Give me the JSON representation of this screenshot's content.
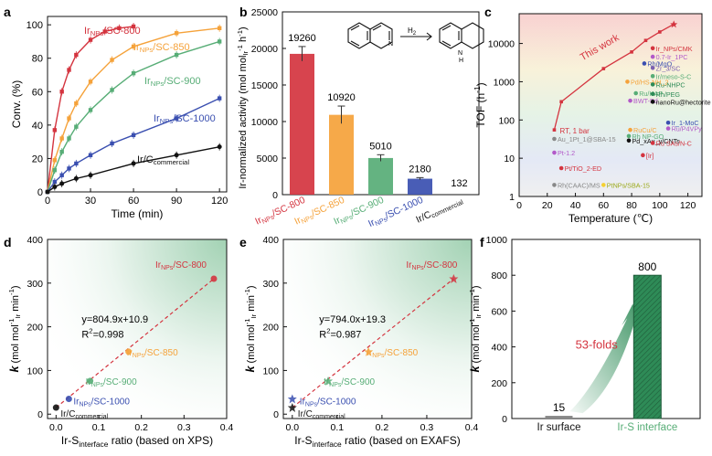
{
  "colors": {
    "red": "#d4343f",
    "orange": "#f5a23a",
    "green": "#57ad76",
    "blue": "#3a4fb0",
    "black": "#111111",
    "green_fill": "#2e8b57"
  },
  "chart_data": [
    {
      "panel": "a",
      "type": "line",
      "xlabel": "Time (min)",
      "ylabel": "Conv. (%)",
      "xlim": [
        0,
        125
      ],
      "ylim": [
        0,
        105
      ],
      "xticks": [
        "0",
        "30",
        "60",
        "90",
        "120"
      ],
      "yticks": [
        "0",
        "20",
        "40",
        "60",
        "80",
        "100"
      ],
      "series": [
        {
          "name": "Ir_NPs/SC-800",
          "label_main": "Ir",
          "label_sub": "NPs",
          "label_rest": "/SC-800",
          "color": "#d4343f",
          "marker": "square",
          "x": [
            0,
            5,
            10,
            15,
            20,
            30,
            40,
            50,
            60
          ],
          "y": [
            0,
            37,
            60,
            73,
            82,
            91,
            96,
            98,
            99
          ]
        },
        {
          "name": "Ir_NPs/SC-850",
          "label_main": "Ir",
          "label_sub": "NPs",
          "label_rest": "/SC-850",
          "color": "#f5a23a",
          "marker": "square",
          "x": [
            0,
            5,
            10,
            15,
            20,
            30,
            45,
            60,
            90,
            120
          ],
          "y": [
            0,
            19,
            32,
            44,
            53,
            66,
            79,
            87,
            95,
            98
          ]
        },
        {
          "name": "Ir_NPs/SC-900",
          "label_main": "Ir",
          "label_sub": "NPs",
          "label_rest": "/SC-900",
          "color": "#57ad76",
          "marker": "square",
          "x": [
            0,
            5,
            10,
            15,
            20,
            30,
            45,
            60,
            90,
            120
          ],
          "y": [
            0,
            13,
            24,
            32,
            39,
            49,
            61,
            71,
            82,
            90
          ]
        },
        {
          "name": "Ir_NPs/SC-1000",
          "label_main": "Ir",
          "label_sub": "NPs",
          "label_rest": "/SC-1000",
          "color": "#3a4fb0",
          "marker": "square",
          "x": [
            0,
            5,
            10,
            15,
            20,
            30,
            45,
            60,
            90,
            120
          ],
          "y": [
            0,
            6,
            10,
            14,
            17,
            22,
            29,
            34,
            44,
            56
          ]
        },
        {
          "name": "Ir/C_commercial",
          "label_main": "Ir/C",
          "label_sub": "commercial",
          "label_rest": "",
          "color": "#111111",
          "marker": "circle",
          "x": [
            0,
            5,
            10,
            20,
            30,
            60,
            90,
            120
          ],
          "y": [
            0,
            3,
            5,
            8,
            10,
            17,
            22,
            27
          ]
        }
      ]
    },
    {
      "panel": "b",
      "type": "bar",
      "ylabel_main": "Ir-normalized activity (mol mol",
      "ylabel_sub": "Ir",
      "ylabel_sup1": "-1",
      "ylabel_h": " h",
      "ylabel_sup2": "-1",
      "ylabel_end": ")",
      "ylim": [
        0,
        25000
      ],
      "yticks": [
        "0",
        "5000",
        "10000",
        "15000",
        "20000",
        "25000"
      ],
      "reaction_reagent": "H",
      "reaction_reagent_sub": "2",
      "nh_label": "N\nH",
      "categories": [
        {
          "main": "Ir",
          "sub": "NPs",
          "rest": "/SC-800",
          "value": 19260,
          "value_label": "19260",
          "error": 1000,
          "color": "#d4343f"
        },
        {
          "main": "Ir",
          "sub": "NPs",
          "rest": "/SC-850",
          "value": 10920,
          "value_label": "10920",
          "error": 1200,
          "color": "#f5a23a"
        },
        {
          "main": "Ir",
          "sub": "NPs",
          "rest": "/SC-900",
          "value": 5010,
          "value_label": "5010",
          "error": 450,
          "color": "#57ad76"
        },
        {
          "main": "Ir",
          "sub": "NPs",
          "rest": "/SC-1000",
          "value": 2180,
          "value_label": "2180",
          "error": 150,
          "color": "#3a4fb0"
        },
        {
          "main": "Ir/C",
          "sub": "commercial",
          "rest": "",
          "value": 132,
          "value_label": "132",
          "error": 0,
          "color": "#888888"
        }
      ]
    },
    {
      "panel": "c",
      "type": "scatter",
      "xlabel": "Temperature (℃)",
      "ylabel": "TOF (h",
      "ylabel_sup": "-1",
      "ylabel_end": ")",
      "yscale": "log",
      "xlim": [
        0,
        130
      ],
      "ylim": [
        1,
        60000
      ],
      "xticks": [
        "0",
        "20",
        "40",
        "60",
        "80",
        "100",
        "120"
      ],
      "yticks": [
        "1",
        "10",
        "100",
        "1000",
        "10000"
      ],
      "this_work_label": "This work",
      "this_work": {
        "x": [
          25,
          30,
          60,
          80,
          90,
          100,
          110
        ],
        "y": [
          55,
          300,
          2200,
          6000,
          12000,
          20000,
          32000
        ]
      },
      "rt_label": "RT, 1 bar",
      "points": [
        {
          "label": "Ir_NPs/CMK",
          "x": 95,
          "y": 7500,
          "color": "#d4343f"
        },
        {
          "label": "0.7-Ir_1PC",
          "x": 95,
          "y": 4500,
          "color": "#b25ac9"
        },
        {
          "label": "Rh/MgO",
          "x": 89,
          "y": 3000,
          "color": "#3a4fb0"
        },
        {
          "label": "Zr_3/SC",
          "x": 95,
          "y": 2300,
          "color": "#7a5fb0"
        },
        {
          "label": "Ir/meso-S-C",
          "x": 95,
          "y": 1400,
          "color": "#57ad76"
        },
        {
          "label": "Pd/HS-NH_2",
          "x": 77,
          "y": 1000,
          "color": "#f5a23a"
        },
        {
          "label": "Ru-NHPC",
          "x": 95,
          "y": 850,
          "color": "#2e8b57"
        },
        {
          "label": "Ru/HAP",
          "x": 83,
          "y": 500,
          "color": "#57ad76"
        },
        {
          "label": "BWT-Pd",
          "x": 79,
          "y": 320,
          "color": "#b25ac9"
        },
        {
          "label": "Rh/PEG",
          "x": 95,
          "y": 480,
          "color": "#2e8b57"
        },
        {
          "label": "nanoRu@hectorite",
          "x": 95,
          "y": 300,
          "color": "#111111"
        },
        {
          "label": "Ir_1-MoC",
          "x": 106,
          "y": 85,
          "color": "#3a4fb0"
        },
        {
          "label": "Ru/P4VPy",
          "x": 106,
          "y": 60,
          "color": "#b25ac9"
        },
        {
          "label": "RuCu/C",
          "x": 79,
          "y": 55,
          "color": "#f5a23a"
        },
        {
          "label": "Rh NP-GO",
          "x": 78,
          "y": 38,
          "color": "#57ad76"
        },
        {
          "label": "Pd_xAu_y/CNTs",
          "x": 78,
          "y": 29,
          "color": "#111111"
        },
        {
          "label": "Ru SAs/N-C",
          "x": 95,
          "y": 25,
          "color": "#d4343f"
        },
        {
          "label": "Au_1Pt_1@SBA-15",
          "x": 25,
          "y": 32,
          "color": "#888888"
        },
        {
          "label": "Pt-1.2",
          "x": 25,
          "y": 14,
          "color": "#b25ac9"
        },
        {
          "label": "[Ir]",
          "x": 88,
          "y": 12,
          "color": "#d4343f"
        },
        {
          "label": "Pt/TiO_2-ED",
          "x": 30,
          "y": 5.5,
          "color": "#d4343f"
        },
        {
          "label": "Rh(CAAC)/MS",
          "x": 25,
          "y": 2,
          "color": "#888888"
        },
        {
          "label": "PtNPs/SBA-15",
          "x": 60,
          "y": 2,
          "color": "#f5d030"
        }
      ]
    },
    {
      "panel": "d",
      "type": "scatter",
      "xlabel_main": "Ir-S",
      "xlabel_sub": "interface",
      "xlabel_rest": " ratio (based on XPS)",
      "ylabel_k": "k",
      "ylabel_main": " (mol mol",
      "ylabel_sub": "Ir",
      "ylabel_sup1": "-1",
      "ylabel_min": " min",
      "ylabel_sup2": "-1",
      "ylabel_end": ")",
      "xlim": [
        -0.02,
        0.4
      ],
      "ylim": [
        -10,
        400
      ],
      "xticks": [
        "0.0",
        "0.1",
        "0.2",
        "0.3",
        "0.4"
      ],
      "yticks": [
        "0",
        "100",
        "200",
        "300",
        "400"
      ],
      "fit_text": "y=804.9x+10.9",
      "r2_main": "R",
      "r2_sup": "2",
      "r2_val": "=0.998",
      "points": [
        {
          "main": "Ir",
          "sub": "NPs",
          "rest": "/SC-800",
          "x": 0.37,
          "y": 310,
          "color": "#d4343f"
        },
        {
          "main": "Ir",
          "sub": "NPs",
          "rest": "/SC-850",
          "x": 0.17,
          "y": 143,
          "color": "#f5a23a"
        },
        {
          "main": "Ir",
          "sub": "NPs",
          "rest": "/SC-900",
          "x": 0.08,
          "y": 76,
          "color": "#57ad76"
        },
        {
          "main": "Ir",
          "sub": "NPs",
          "rest": "/SC-1000",
          "x": 0.03,
          "y": 35,
          "color": "#3a4fb0"
        },
        {
          "main": "Ir/C",
          "sub": "commercial",
          "rest": "",
          "x": 0.0,
          "y": 15,
          "color": "#111111"
        }
      ]
    },
    {
      "panel": "e",
      "type": "scatter",
      "xlabel_main": "Ir-S",
      "xlabel_sub": "interface",
      "xlabel_rest": " ratio (based on EXAFS)",
      "ylabel_k": "k",
      "ylabel_main": " (mol mol",
      "ylabel_sub": "Ir",
      "ylabel_sup1": "-1",
      "ylabel_min": " min",
      "ylabel_sup2": "-1",
      "ylabel_end": ")",
      "xlim": [
        -0.02,
        0.4
      ],
      "ylim": [
        -10,
        400
      ],
      "xticks": [
        "0.0",
        "0.1",
        "0.2",
        "0.3",
        "0.4"
      ],
      "yticks": [
        "0",
        "100",
        "200",
        "300",
        "400"
      ],
      "fit_text": "y=794.0x+19.3",
      "r2_main": "R",
      "r2_sup": "2",
      "r2_val": "=0.987",
      "points": [
        {
          "main": "Ir",
          "sub": "NPs",
          "rest": "/SC-800",
          "x": 0.36,
          "y": 310,
          "color": "#d4343f"
        },
        {
          "main": "Ir",
          "sub": "NPs",
          "rest": "/SC-850",
          "x": 0.17,
          "y": 143,
          "color": "#f5a23a"
        },
        {
          "main": "Ir",
          "sub": "NPs",
          "rest": "/SC-900",
          "x": 0.08,
          "y": 76,
          "color": "#57ad76"
        },
        {
          "main": "Ir",
          "sub": "NPs",
          "rest": "/SC-1000",
          "x": 0.0,
          "y": 35,
          "color": "#3a4fb0"
        },
        {
          "main": "Ir/C",
          "sub": "commercial",
          "rest": "",
          "x": 0.0,
          "y": 15,
          "color": "#111111"
        }
      ]
    },
    {
      "panel": "f",
      "type": "bar",
      "ylabel_k": "k",
      "ylabel_main": " (mol mol",
      "ylabel_sub": "Ir",
      "ylabel_sup1": "-1",
      "ylabel_min": " min",
      "ylabel_sup2": "-1",
      "ylabel_end": ")",
      "ylim": [
        0,
        1000
      ],
      "yticks": [
        "0",
        "200",
        "400",
        "600",
        "800",
        "1000"
      ],
      "categories": [
        "Ir surface",
        "Ir-S interface"
      ],
      "values": [
        15,
        800
      ],
      "value_labels": [
        "15",
        "800"
      ],
      "colors": [
        "#888888",
        "#2e8b57"
      ],
      "annotation": "53-folds"
    }
  ]
}
